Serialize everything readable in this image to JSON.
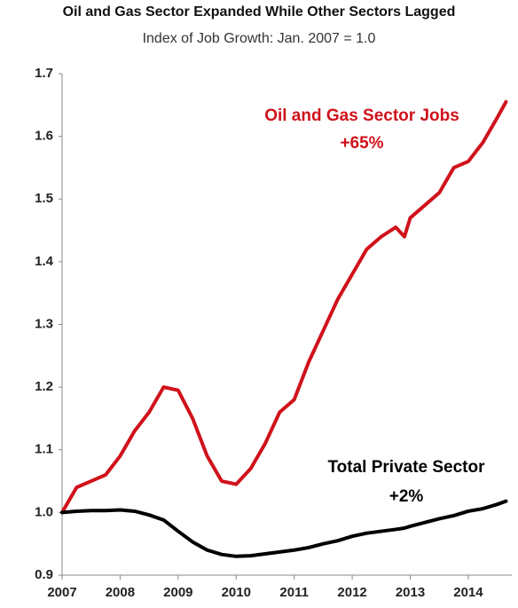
{
  "chart_data": {
    "type": "line",
    "title": "Oil and Gas Sector Expanded While Other Sectors Lagged",
    "subtitle": "Index of Job Growth: Jan. 2007 = 1.0",
    "x": [
      2007,
      2007.25,
      2007.5,
      2007.75,
      2008,
      2008.25,
      2008.5,
      2008.75,
      2009,
      2009.25,
      2009.5,
      2009.75,
      2010,
      2010.25,
      2010.5,
      2010.75,
      2011,
      2011.25,
      2011.5,
      2011.75,
      2012,
      2012.25,
      2012.5,
      2012.75,
      2012.9,
      2013,
      2013.25,
      2013.5,
      2013.75,
      2014,
      2014.25,
      2014.5,
      2014.65
    ],
    "series": [
      {
        "name": "Oil and Gas Sector Jobs",
        "color": "#d0121b",
        "values": [
          1.0,
          1.04,
          1.05,
          1.06,
          1.09,
          1.13,
          1.16,
          1.2,
          1.195,
          1.15,
          1.09,
          1.05,
          1.045,
          1.07,
          1.11,
          1.16,
          1.18,
          1.24,
          1.29,
          1.34,
          1.38,
          1.42,
          1.44,
          1.455,
          1.44,
          1.47,
          1.49,
          1.51,
          1.55,
          1.56,
          1.59,
          1.63,
          1.655
        ]
      },
      {
        "name": "Total Private Sector",
        "color": "#000000",
        "values": [
          1.0,
          1.002,
          1.003,
          1.003,
          1.004,
          1.002,
          0.996,
          0.988,
          0.97,
          0.953,
          0.94,
          0.933,
          0.93,
          0.931,
          0.934,
          0.937,
          0.94,
          0.944,
          0.95,
          0.955,
          0.962,
          0.967,
          0.97,
          0.973,
          0.975,
          0.978,
          0.984,
          0.99,
          0.995,
          1.002,
          1.006,
          1.013,
          1.018
        ]
      }
    ],
    "annotations": [
      "+65%",
      "+2%"
    ],
    "xlim": [
      2007,
      2014.75
    ],
    "xticks": [
      2007,
      2008,
      2009,
      2010,
      2011,
      2012,
      2013,
      2014
    ],
    "ylim": [
      0.9,
      1.7
    ],
    "yticks": [
      {
        "value": 0.9,
        "label": "0.9"
      },
      {
        "value": 1,
        "label": "1.0"
      },
      1.1,
      1.2,
      1.3,
      1.4,
      1.5,
      1.6,
      1.7
    ],
    "grid": false
  }
}
